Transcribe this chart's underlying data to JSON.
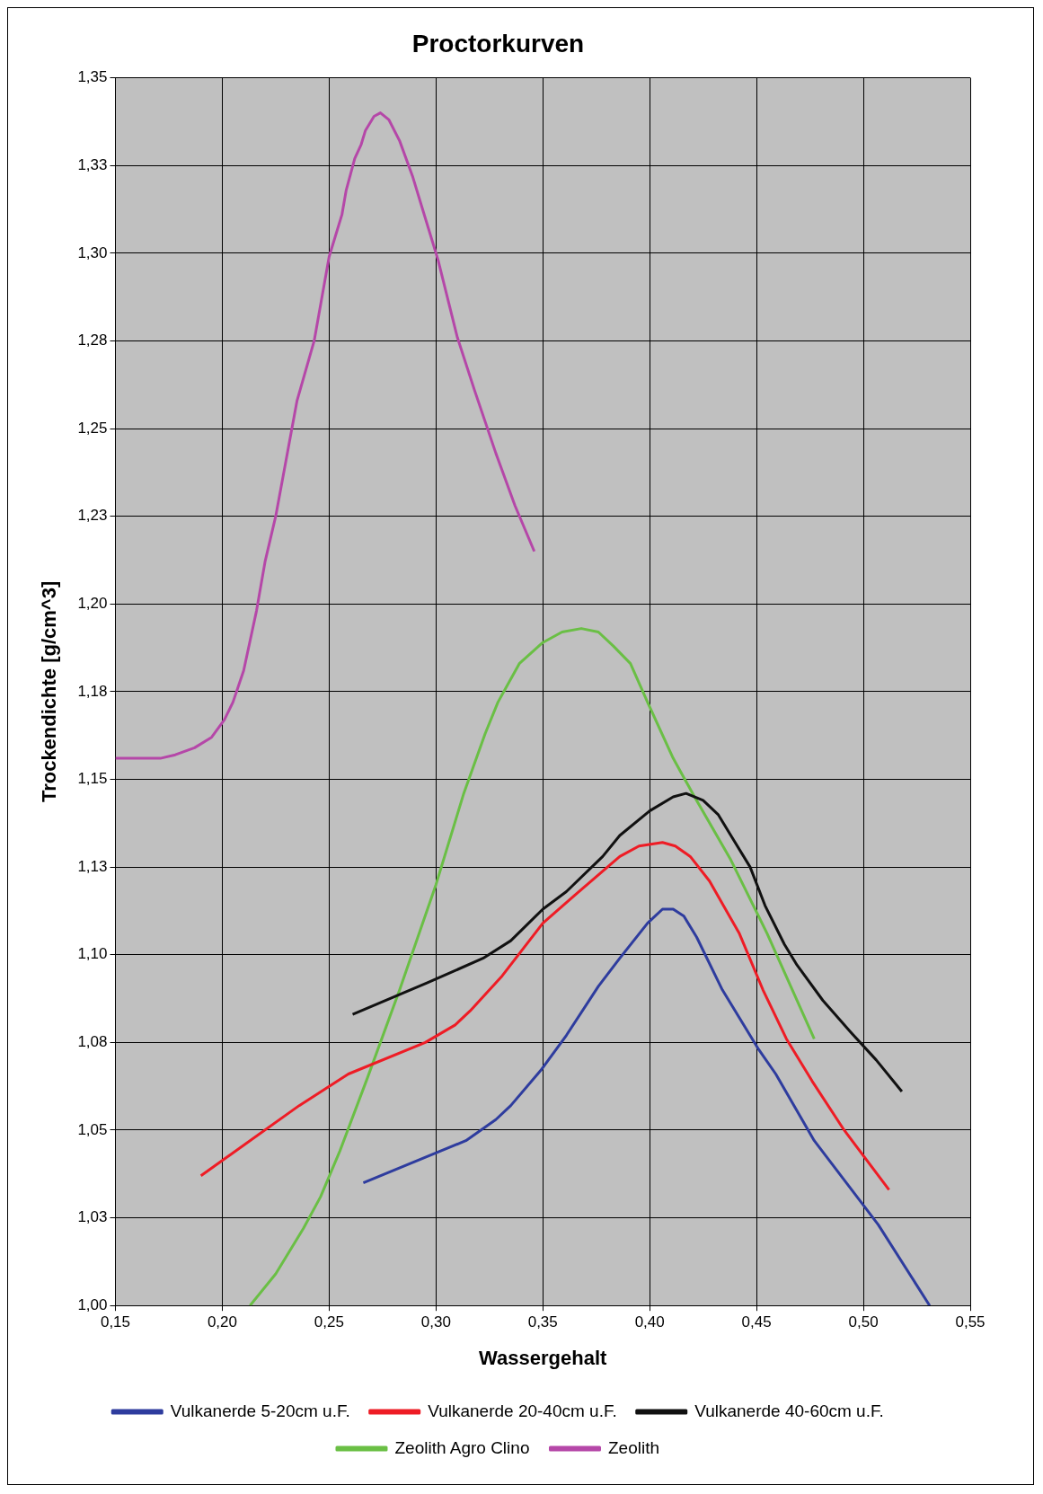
{
  "chart_data": {
    "type": "line",
    "title": "Proctorkurven",
    "xlabel": "Wassergehalt",
    "ylabel": "Trockendichte [g/cm^3]",
    "xlim": [
      0.15,
      0.55
    ],
    "xticks": [
      {
        "value": 0.15,
        "label": "0,15"
      },
      {
        "value": 0.2,
        "label": "0,20"
      },
      {
        "value": 0.25,
        "label": "0,25"
      },
      {
        "value": 0.3,
        "label": "0,30"
      },
      {
        "value": 0.35,
        "label": "0,35"
      },
      {
        "value": 0.4,
        "label": "0,40"
      },
      {
        "value": 0.45,
        "label": "0,45"
      },
      {
        "value": 0.5,
        "label": "0,50"
      },
      {
        "value": 0.55,
        "label": "0,55"
      }
    ],
    "ylim": [
      1.0,
      1.35
    ],
    "yticks": [
      {
        "value": 1.0,
        "label": "1,00"
      },
      {
        "value": 1.025,
        "label": "1,03"
      },
      {
        "value": 1.05,
        "label": "1,05"
      },
      {
        "value": 1.075,
        "label": "1,08"
      },
      {
        "value": 1.1,
        "label": "1,10"
      },
      {
        "value": 1.125,
        "label": "1,13"
      },
      {
        "value": 1.15,
        "label": "1,15"
      },
      {
        "value": 1.175,
        "label": "1,18"
      },
      {
        "value": 1.2,
        "label": "1,20"
      },
      {
        "value": 1.225,
        "label": "1,23"
      },
      {
        "value": 1.25,
        "label": "1,25"
      },
      {
        "value": 1.275,
        "label": "1,28"
      },
      {
        "value": 1.3,
        "label": "1,30"
      },
      {
        "value": 1.325,
        "label": "1,33"
      },
      {
        "value": 1.35,
        "label": "1,35"
      }
    ],
    "grid": true,
    "legend": "bottom",
    "marker": "none",
    "line_style": "solid",
    "series": [
      {
        "name": "Vulkanerde 5-20cm u.F.",
        "color": "#2e3c9e",
        "x": [
          0.266,
          0.314,
          0.328,
          0.335,
          0.349,
          0.361,
          0.376,
          0.386,
          0.399,
          0.406,
          0.411,
          0.416,
          0.422,
          0.434,
          0.451,
          0.459,
          0.477,
          0.507,
          0.531
        ],
        "values": [
          1.035,
          1.047,
          1.053,
          1.057,
          1.067,
          1.077,
          1.091,
          1.099,
          1.109,
          1.113,
          1.113,
          1.111,
          1.105,
          1.09,
          1.073,
          1.066,
          1.047,
          1.023,
          1.0
        ]
      },
      {
        "name": "Vulkanerde 20-40cm u.F.",
        "color": "#ee1c25",
        "x": [
          0.19,
          0.236,
          0.259,
          0.295,
          0.309,
          0.316,
          0.331,
          0.35,
          0.365,
          0.386,
          0.395,
          0.406,
          0.412,
          0.419,
          0.428,
          0.442,
          0.453,
          0.464,
          0.476,
          0.491,
          0.512
        ],
        "values": [
          1.037,
          1.057,
          1.066,
          1.075,
          1.08,
          1.084,
          1.094,
          1.109,
          1.117,
          1.128,
          1.131,
          1.132,
          1.131,
          1.128,
          1.121,
          1.106,
          1.09,
          1.076,
          1.064,
          1.05,
          1.033
        ]
      },
      {
        "name": "Vulkanerde 40-60cm u.F.",
        "color": "#111111",
        "x": [
          0.261,
          0.296,
          0.322,
          0.335,
          0.35,
          0.361,
          0.378,
          0.386,
          0.4,
          0.411,
          0.417,
          0.425,
          0.432,
          0.438,
          0.447,
          0.454,
          0.463,
          0.469,
          0.481,
          0.494,
          0.506,
          0.518
        ],
        "values": [
          1.083,
          1.092,
          1.099,
          1.104,
          1.113,
          1.118,
          1.128,
          1.134,
          1.141,
          1.145,
          1.146,
          1.144,
          1.14,
          1.134,
          1.125,
          1.114,
          1.103,
          1.097,
          1.087,
          1.078,
          1.07,
          1.061
        ]
      },
      {
        "name": "Zeolith Agro Clino",
        "color": "#6abf45",
        "x": [
          0.213,
          0.225,
          0.238,
          0.246,
          0.255,
          0.268,
          0.283,
          0.3,
          0.313,
          0.323,
          0.329,
          0.339,
          0.35,
          0.359,
          0.368,
          0.376,
          0.383,
          0.391,
          0.399,
          0.411,
          0.421,
          0.438,
          0.455,
          0.477
        ],
        "values": [
          1.0,
          1.009,
          1.022,
          1.031,
          1.044,
          1.065,
          1.09,
          1.12,
          1.146,
          1.163,
          1.172,
          1.183,
          1.189,
          1.192,
          1.193,
          1.192,
          1.188,
          1.183,
          1.172,
          1.156,
          1.145,
          1.127,
          1.106,
          1.076
        ]
      },
      {
        "name": "Zeolith",
        "color": "#b547a8",
        "x": [
          0.15,
          0.159,
          0.171,
          0.178,
          0.187,
          0.195,
          0.201,
          0.205,
          0.21,
          0.216,
          0.22,
          0.225,
          0.235,
          0.243,
          0.25,
          0.256,
          0.258,
          0.262,
          0.265,
          0.267,
          0.271,
          0.274,
          0.278,
          0.283,
          0.289,
          0.294,
          0.301,
          0.31,
          0.318,
          0.328,
          0.337,
          0.346
        ],
        "values": [
          1.156,
          1.156,
          1.156,
          1.157,
          1.159,
          1.162,
          1.167,
          1.172,
          1.181,
          1.198,
          1.212,
          1.225,
          1.258,
          1.275,
          1.299,
          1.311,
          1.318,
          1.327,
          1.331,
          1.335,
          1.339,
          1.34,
          1.338,
          1.332,
          1.322,
          1.312,
          1.298,
          1.276,
          1.261,
          1.243,
          1.228,
          1.215
        ]
      }
    ]
  }
}
